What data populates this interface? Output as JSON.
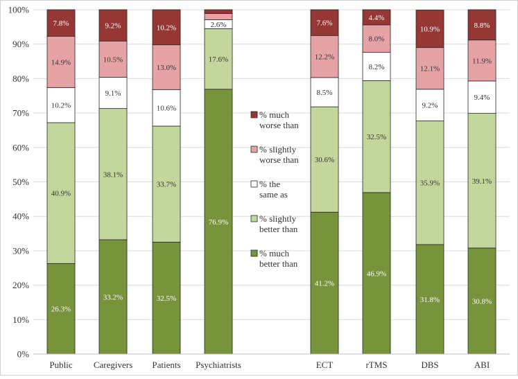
{
  "chart_data": {
    "type": "bar",
    "stacked": true,
    "percent": true,
    "categories": [
      "Public",
      "Caregivers",
      "Patients",
      "Psychiatrists",
      "ECT",
      "rTMS",
      "DBS",
      "ABI"
    ],
    "series": [
      {
        "name": "% much better than",
        "color": "#77933c",
        "values": [
          26.3,
          33.2,
          32.5,
          76.9,
          41.2,
          46.9,
          31.8,
          30.8
        ],
        "labels": [
          "26.3%",
          "33.2%",
          "32.5%",
          "76.9%",
          "41.2%",
          "46.9%",
          "31.8%",
          "30.8%"
        ],
        "label_color": "#ffffff"
      },
      {
        "name": "% slightly better than",
        "color": "#c3d69b",
        "values": [
          40.9,
          38.1,
          33.7,
          17.6,
          30.6,
          32.5,
          35.9,
          39.1
        ],
        "labels": [
          "40.9%",
          "38.1%",
          "33.7%",
          "17.6%",
          "30.6%",
          "32.5%",
          "35.9%",
          "39.1%"
        ],
        "label_color": "#333333"
      },
      {
        "name": "% the same as",
        "color": "#ffffff",
        "values": [
          10.2,
          9.1,
          10.6,
          2.6,
          8.5,
          8.2,
          9.2,
          9.4
        ],
        "labels": [
          "10.2%",
          "9.1%",
          "10.6%",
          "2.6%",
          "8.5%",
          "8.2%",
          "9.2%",
          "9.4%"
        ],
        "label_color": "#333333"
      },
      {
        "name": "% slightly worse than",
        "color": "#e6a3a6",
        "values": [
          14.9,
          10.5,
          13.0,
          1.8,
          12.2,
          8.0,
          12.1,
          11.9
        ],
        "labels": [
          "14.9%",
          "10.5%",
          "13.0%",
          "",
          "12.2%",
          "8.0%",
          "12.1%",
          "11.9%"
        ],
        "label_color": "#333333"
      },
      {
        "name": "% much worse than",
        "color": "#953735",
        "values": [
          7.8,
          9.2,
          10.2,
          1.1,
          7.6,
          4.4,
          10.9,
          8.8
        ],
        "labels": [
          "7.8%",
          "9.2%",
          "10.2%",
          "",
          "7.6%",
          "4.4%",
          "10.9%",
          "8.8%"
        ],
        "label_color": "#ffffff"
      }
    ],
    "legend": {
      "placement": "center",
      "order": [
        4,
        3,
        2,
        1,
        0
      ],
      "entries": [
        {
          "line1": "% much",
          "line2": "worse than"
        },
        {
          "line1": "% slightly",
          "line2": "worse than"
        },
        {
          "line1": "% the",
          "line2": "same as"
        },
        {
          "line1": "% slightly",
          "line2": "better than"
        },
        {
          "line1": "% much",
          "line2": "better than"
        }
      ]
    },
    "ylim": [
      0,
      100
    ],
    "yticks": [
      0,
      10,
      20,
      30,
      40,
      50,
      60,
      70,
      80,
      90,
      100
    ],
    "ytick_labels": [
      "0%",
      "10%",
      "20%",
      "30%",
      "40%",
      "50%",
      "60%",
      "70%",
      "80%",
      "90%",
      "100%"
    ],
    "grid": true,
    "title": "",
    "xlabel": "",
    "ylabel": ""
  }
}
